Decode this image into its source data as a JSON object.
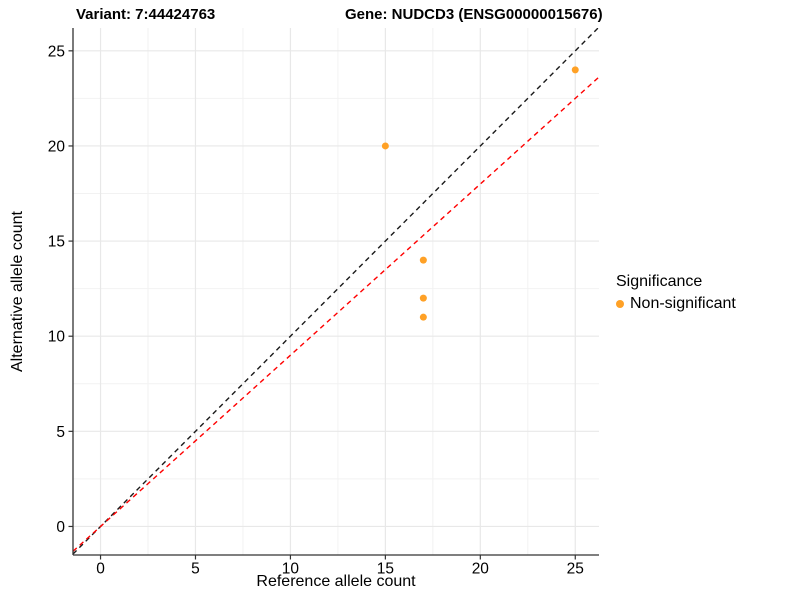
{
  "chart_data": {
    "type": "scatter",
    "title_left": "Variant: 7:44424763",
    "title_right": "Gene: NUDCD3 (ENSG00000015676)",
    "xlabel": "Reference allele count",
    "ylabel": "Alternative allele count",
    "xlim": [
      -1.45,
      26.25
    ],
    "ylim": [
      -1.5,
      26.2
    ],
    "x_ticks": [
      0,
      5,
      10,
      15,
      20,
      25
    ],
    "y_ticks": [
      0,
      5,
      10,
      15,
      20,
      25
    ],
    "minor_ticks": [
      2.5,
      7.5,
      12.5,
      17.5,
      22.5
    ],
    "grid": true,
    "points": [
      {
        "x": 15,
        "y": 20
      },
      {
        "x": 17,
        "y": 14
      },
      {
        "x": 17,
        "y": 12
      },
      {
        "x": 17,
        "y": 11
      },
      {
        "x": 25,
        "y": 24
      }
    ],
    "point_color": "#FFA126",
    "point_series": "Non-significant",
    "lines": [
      {
        "name": "identity-line",
        "slope": 1.0,
        "intercept": 0,
        "color": "#1a1a1a",
        "dash": "5,4"
      },
      {
        "name": "fit-line",
        "slope": 0.9,
        "intercept": 0,
        "color": "#ff0000",
        "dash": "5,4"
      }
    ],
    "legend": {
      "position": "right",
      "title": "Significance",
      "items": [
        {
          "label": "Non-significant",
          "color": "#FFA126"
        }
      ]
    },
    "colors": {
      "grid_major": "#e8e8e8",
      "grid_minor": "#f2f2f2",
      "axis_line": "#333333",
      "tick_text": "#000000"
    }
  }
}
